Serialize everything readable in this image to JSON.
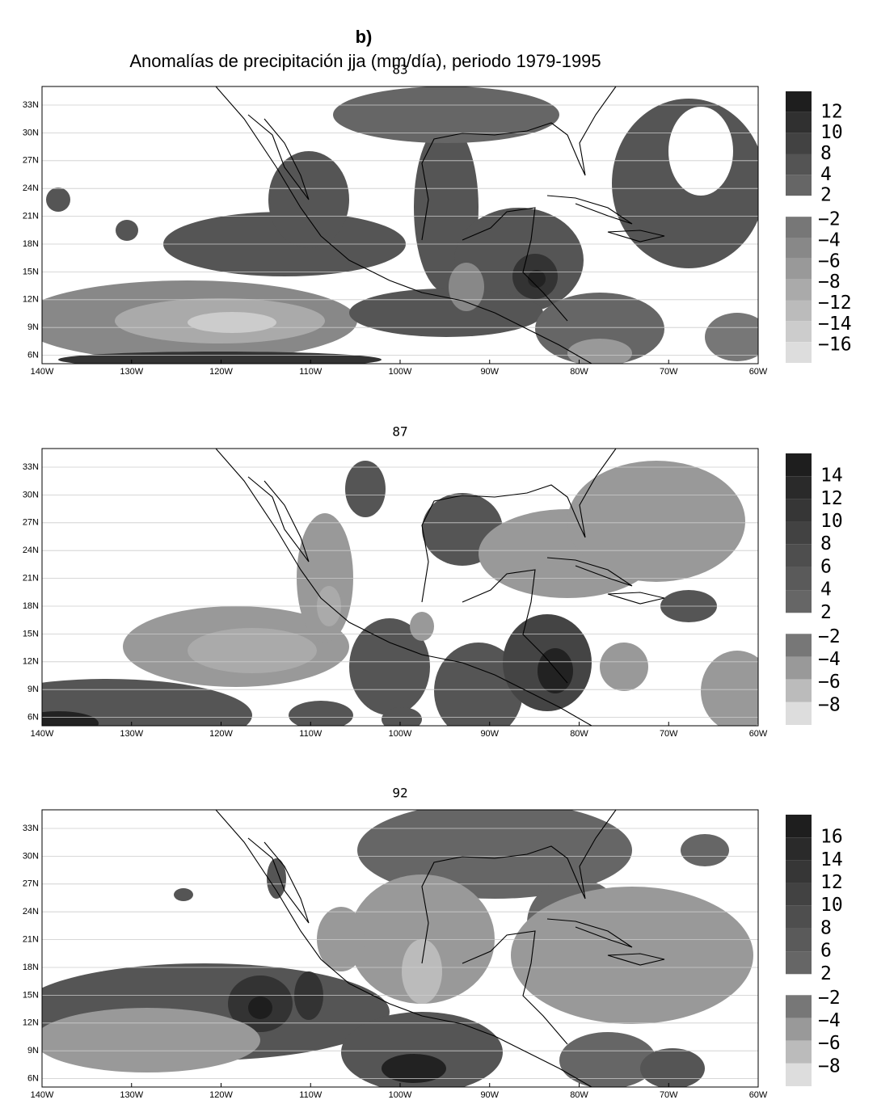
{
  "figure_label": "b)",
  "title": "Anomalías de precipitación jja (mm/día), periodo 1979-1995",
  "lat_labels": [
    "33N",
    "30N",
    "27N",
    "24N",
    "21N",
    "18N",
    "15N",
    "12N",
    "9N",
    "6N"
  ],
  "lon_labels": [
    "140W",
    "130W",
    "120W",
    "110W",
    "100W",
    "90W",
    "80W",
    "70W",
    "60W"
  ],
  "panels": [
    {
      "title": "83",
      "colorbar": {
        "positive": [
          "12",
          "10",
          "8",
          "4",
          "2"
        ],
        "negative": [
          "−2",
          "−4",
          "−6",
          "−8",
          "−12",
          "−14",
          "−16"
        ]
      }
    },
    {
      "title": "87",
      "colorbar": {
        "positive": [
          "14",
          "12",
          "10",
          "8",
          "6",
          "4",
          "2"
        ],
        "negative": [
          "−2",
          "−4",
          "−6",
          "−8"
        ]
      }
    },
    {
      "title": "92",
      "colorbar": {
        "positive": [
          "16",
          "14",
          "12",
          "10",
          "8",
          "6",
          "2"
        ],
        "negative": [
          "−2",
          "−4",
          "−6",
          "−8"
        ]
      }
    }
  ]
}
